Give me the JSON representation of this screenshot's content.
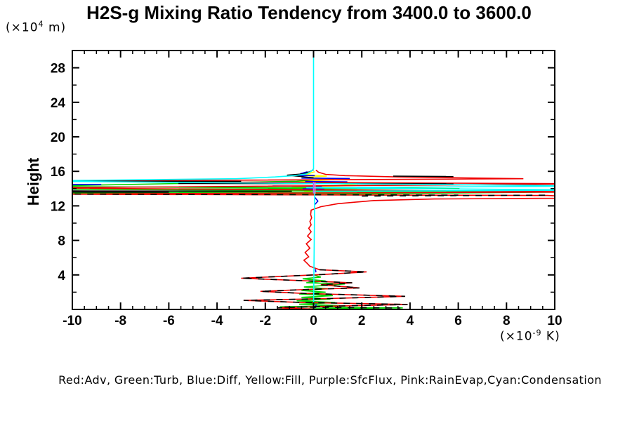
{
  "title": "H2S-g Mixing Ratio Tendency from 3400.0 to 3600.0",
  "legend_note": "Red:Adv, Green:Turb, Blue:Diff, Yellow:Fill, Purple:SfcFlux, Pink:RainEvap,Cyan:Condensation",
  "y_unit": {
    "prefix": "(×10",
    "exp": "4",
    "suffix": " m)"
  },
  "x_unit": {
    "prefix": "(×10",
    "exp": "-9",
    "suffix": " K)"
  },
  "chart_data": {
    "type": "line",
    "title": "H2S-g Mixing Ratio Tendency from 3400.0 to 3600.0",
    "xlabel": "(x10^-9 K)",
    "ylabel": "Height",
    "ylabel_units": "(x10^4 m)",
    "xlim": [
      -10,
      10
    ],
    "ylim": [
      0,
      30
    ],
    "x_major_step": 2,
    "x_minor_step": 0.5,
    "y_major_step": 4,
    "y_minor_step": 2,
    "x_tick_labels": [
      "-10",
      "-8",
      "-6",
      "-4",
      "-2",
      "0",
      "2",
      "4",
      "6",
      "8",
      "10"
    ],
    "x_tick_values": [
      -10,
      -8,
      -6,
      -4,
      -2,
      0,
      2,
      4,
      6,
      8,
      10
    ],
    "y_tick_labels": [
      "4",
      "8",
      "12",
      "16",
      "20",
      "24",
      "28"
    ],
    "y_tick_values": [
      4,
      8,
      12,
      16,
      20,
      24,
      28
    ],
    "grid": false,
    "legend_position": "bottom-caption",
    "series": [
      {
        "name": "fill",
        "legend": "Yellow:Fill",
        "color": "#ffff00",
        "dash": "",
        "paths": [
          [
            [
              0.05,
              15.95
            ],
            [
              -0.35,
              15.62
            ],
            [
              0.55,
              15.45
            ],
            [
              -0.5,
              15.27
            ],
            [
              0.85,
              15.05
            ],
            [
              -0.65,
              14.82
            ],
            [
              0.5,
              14.67
            ],
            [
              1.85,
              14.37
            ],
            [
              -0.9,
              14.15
            ],
            [
              0.75,
              13.97
            ],
            [
              -0.4,
              13.77
            ],
            [
              0.15,
              13.57
            ]
          ]
        ]
      },
      {
        "name": "turb",
        "legend": "Green:Turb",
        "color": "#00d400",
        "dash": "",
        "paths": [
          [
            [
              0,
              15.02
            ],
            [
              -0.7,
              14.85
            ],
            [
              -12,
              14.25
            ],
            [
              6.05,
              14.0
            ],
            [
              -12,
              13.95
            ],
            [
              7.65,
              13.7
            ],
            [
              -12,
              13.5
            ],
            [
              0.4,
              13.42
            ],
            [
              2,
              13.38
            ],
            [
              6,
              13.5
            ],
            [
              12,
              13.64
            ]
          ],
          [
            [
              0.05,
              3.95
            ],
            [
              0.3,
              3.75
            ],
            [
              -0.45,
              3.55
            ],
            [
              0.5,
              3.3
            ],
            [
              -0.3,
              3.1
            ],
            [
              1.3,
              2.95
            ],
            [
              -0.4,
              2.6
            ],
            [
              0.6,
              2.4
            ],
            [
              -0.5,
              2.2
            ],
            [
              0.5,
              2.0
            ],
            [
              -0.6,
              1.8
            ],
            [
              0.8,
              1.6
            ],
            [
              -0.5,
              1.4
            ],
            [
              0.7,
              1.2
            ],
            [
              -0.7,
              1.0
            ],
            [
              0.9,
              0.8
            ],
            [
              -0.6,
              0.6
            ],
            [
              1.1,
              0.45
            ],
            [
              -1.4,
              0.3
            ],
            [
              3.7,
              0.18
            ],
            [
              -0.2,
              0.08
            ],
            [
              0.02,
              0.03
            ]
          ]
        ]
      },
      {
        "name": "diff",
        "legend": "Blue:Diff",
        "color": "#0000ee",
        "dash": "",
        "paths": [
          [
            [
              -0.25,
              15.95
            ],
            [
              -0.55,
              15.72
            ]
          ],
          [
            [
              -0.75,
              15.52
            ],
            [
              0.05,
              15.5
            ]
          ],
          [
            [
              -0.5,
              15.22
            ],
            [
              1.5,
              15.17
            ]
          ],
          [
            [
              -0.35,
              14.82
            ],
            [
              1.4,
              14.78
            ]
          ],
          [
            [
              3.3,
              14.64
            ],
            [
              5.8,
              14.6
            ]
          ],
          [
            [
              -10.2,
              14.48
            ],
            [
              -8.8,
              14.48
            ]
          ],
          [
            [
              -1.7,
              14.3
            ],
            [
              0.35,
              14.27
            ]
          ],
          [
            [
              -0.45,
              13.97
            ],
            [
              0.45,
              13.93
            ]
          ],
          [
            [
              0.05,
              13.0
            ],
            [
              0.18,
              12.55
            ],
            [
              0.05,
              12.15
            ]
          ],
          [
            [
              0.08,
              4.65
            ],
            [
              0.1,
              4.3
            ]
          ],
          [
            [
              0.12,
              0.6
            ],
            [
              0.05,
              0.15
            ]
          ]
        ]
      },
      {
        "name": "adv",
        "legend": "Red:Adv",
        "color": "#f00000",
        "dash": "",
        "paths": [
          [
            [
              0.1,
              16.15
            ],
            [
              0.2,
              15.9
            ],
            [
              0.5,
              15.65
            ],
            [
              1.3,
              15.5
            ],
            [
              3.5,
              15.35
            ],
            [
              8.7,
              15.15
            ],
            [
              -12,
              14.85
            ],
            [
              12,
              14.55
            ],
            [
              -12,
              14.08
            ],
            [
              12,
              13.62
            ],
            [
              -12,
              13.36
            ],
            [
              9.7,
              13.2
            ],
            [
              12,
              12.92
            ],
            [
              5,
              12.8
            ],
            [
              2.5,
              12.62
            ],
            [
              1.0,
              12.25
            ],
            [
              0.3,
              11.9
            ],
            [
              -0.1,
              11.5
            ],
            [
              -0.12,
              11.0
            ],
            [
              -0.08,
              10.6
            ],
            [
              -0.15,
              10.2
            ],
            [
              -0.1,
              9.8
            ],
            [
              -0.2,
              9.4
            ],
            [
              -0.1,
              9.0
            ],
            [
              -0.25,
              8.5
            ],
            [
              -0.1,
              8.1
            ],
            [
              -0.3,
              7.6
            ],
            [
              -0.15,
              7.1
            ],
            [
              -0.35,
              6.6
            ],
            [
              -0.2,
              6.1
            ],
            [
              -0.4,
              5.7
            ],
            [
              -0.25,
              5.3
            ],
            [
              -0.15,
              5.0
            ],
            [
              0.25,
              4.6
            ],
            [
              2.2,
              4.35
            ],
            [
              0.4,
              4.05
            ],
            [
              -3.0,
              3.62
            ],
            [
              -0.6,
              3.35
            ],
            [
              1.6,
              3.08
            ],
            [
              0.3,
              2.85
            ],
            [
              1.9,
              2.5
            ],
            [
              -0.25,
              2.32
            ],
            [
              -2.2,
              2.1
            ],
            [
              -0.4,
              1.85
            ],
            [
              3.8,
              1.52
            ],
            [
              0.5,
              1.25
            ],
            [
              -2.9,
              1.05
            ],
            [
              -0.6,
              0.82
            ],
            [
              3.9,
              0.58
            ],
            [
              0.3,
              0.35
            ],
            [
              -1.5,
              0.18
            ],
            [
              0,
              0.05
            ]
          ]
        ]
      },
      {
        "name": "net-black",
        "legend": "",
        "color": "#000000",
        "dash": "",
        "paths": [
          [
            [
              0,
              16.2
            ],
            [
              -0.15,
              15.95
            ],
            [
              -0.45,
              15.7
            ],
            [
              -1.1,
              15.55
            ],
            [
              -0.5,
              15.4
            ],
            [
              -0.2,
              15.3
            ],
            [
              0,
              15.25
            ]
          ],
          [
            [
              3.3,
              15.45
            ],
            [
              5.8,
              15.4
            ]
          ],
          [
            [
              -5.6,
              14.6
            ],
            [
              5.8,
              14.56
            ]
          ],
          [
            [
              -12,
              14.87
            ],
            [
              -3,
              14.84
            ]
          ],
          [
            [
              -12,
              13.74
            ],
            [
              -0.9,
              13.7
            ]
          ],
          [
            [
              -10.3,
              13.6
            ],
            [
              -6,
              13.58
            ]
          ]
        ]
      },
      {
        "name": "net-black-dashed",
        "legend": "",
        "color": "#000000",
        "dash": "9,9",
        "paths": [
          [
            [
              2.0,
              13.14
            ],
            [
              9.7,
              13.24
            ]
          ],
          [
            [
              -12,
              13.38
            ],
            [
              6,
              13.24
            ]
          ],
          [
            [
              0.25,
              4.6
            ],
            [
              2.2,
              4.35
            ],
            [
              0.4,
              4.05
            ],
            [
              -3.0,
              3.62
            ],
            [
              -0.6,
              3.35
            ],
            [
              1.6,
              3.08
            ],
            [
              0.3,
              2.85
            ],
            [
              1.9,
              2.5
            ],
            [
              -0.25,
              2.32
            ],
            [
              -2.2,
              2.1
            ],
            [
              -0.4,
              1.85
            ],
            [
              3.8,
              1.52
            ],
            [
              0.5,
              1.25
            ],
            [
              -2.9,
              1.05
            ],
            [
              -0.6,
              0.82
            ],
            [
              3.9,
              0.58
            ],
            [
              0.3,
              0.35
            ],
            [
              -1.5,
              0.18
            ]
          ],
          [
            [
              -1.2,
              0.28
            ],
            [
              3.6,
              0.16
            ]
          ]
        ]
      },
      {
        "name": "condensation",
        "legend": "Cyan:Condensation",
        "color": "#00ffff",
        "dash": "",
        "paths": [
          [
            [
              0,
              30
            ],
            [
              0,
              16.3
            ],
            [
              -0.1,
              16.0
            ],
            [
              -0.3,
              15.7
            ],
            [
              -0.8,
              15.5
            ],
            [
              -1.6,
              15.35
            ],
            [
              -3.2,
              15.15
            ],
            [
              -12,
              14.88
            ],
            [
              12,
              14.3
            ],
            [
              -0.3,
              14.1
            ],
            [
              12,
              13.82
            ],
            [
              0.05,
              13.7
            ],
            [
              0,
              0
            ]
          ]
        ]
      },
      {
        "name": "sfcflux",
        "legend": "Purple:SfcFlux",
        "color": "#aa66ff",
        "dash": "",
        "paths": [
          [
            [
              0,
              14.78
            ],
            [
              0,
              13.45
            ]
          ]
        ]
      },
      {
        "name": "rainevap",
        "legend": "Pink:RainEvap",
        "color": "#ff88cc",
        "dash": "",
        "paths": [
          [
            [
              0.06,
              14.72
            ],
            [
              0.06,
              13.4
            ]
          ]
        ]
      }
    ]
  }
}
